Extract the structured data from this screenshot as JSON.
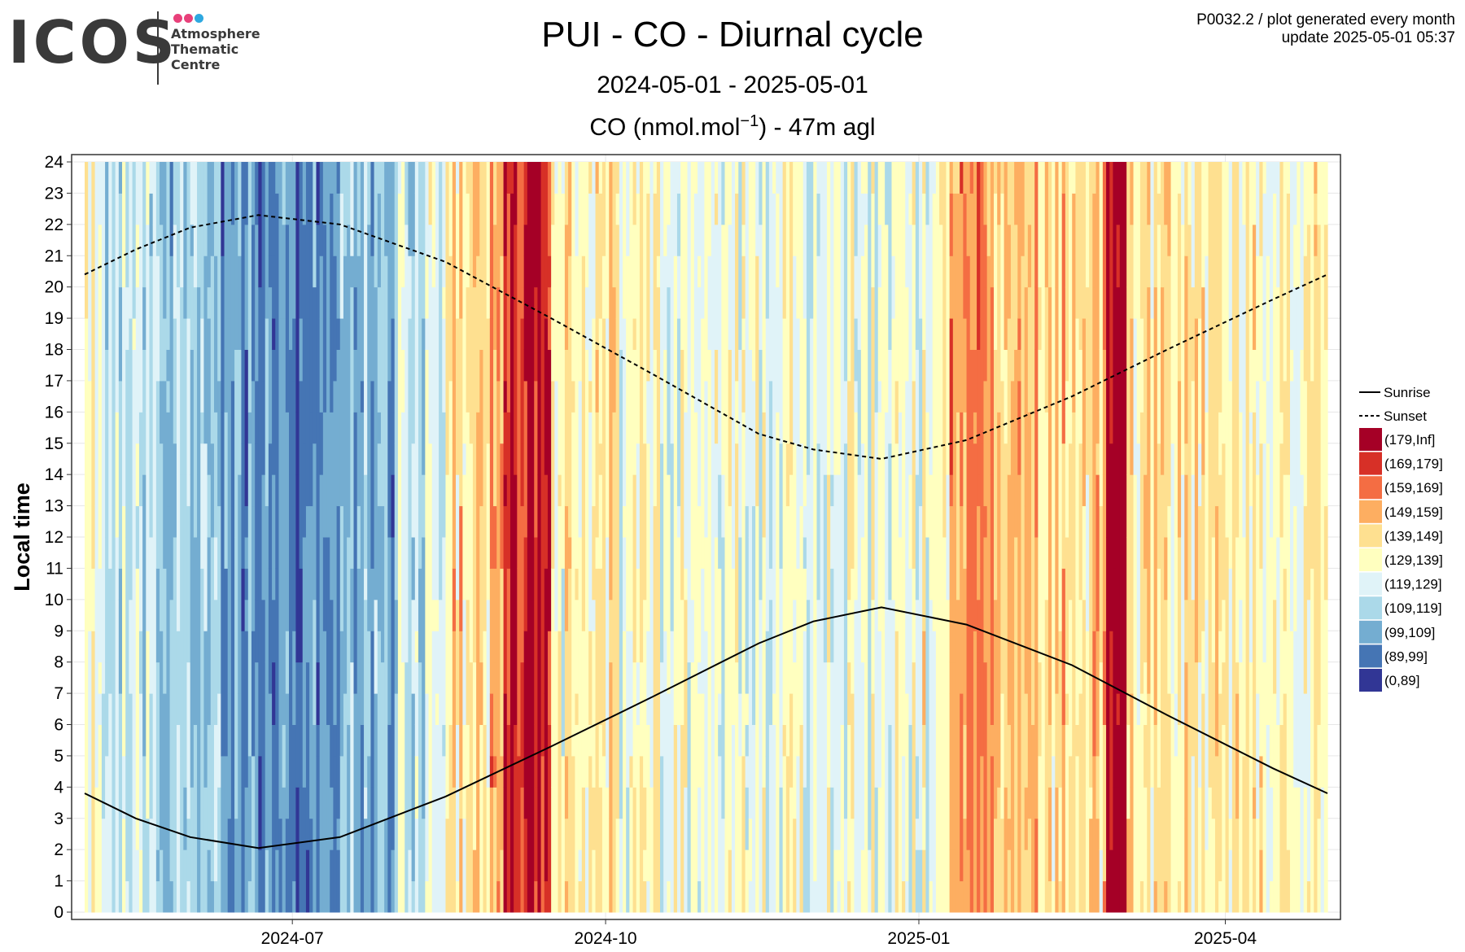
{
  "header": {
    "logo_word": "ICOS",
    "logo_lines": [
      "Atmosphere",
      "Thematic",
      "Centre"
    ],
    "logo_dot_colors": [
      "#e8407a",
      "#e8407a",
      "#2ea8e0"
    ],
    "title": "PUI - CO - Diurnal cycle",
    "date_range": "2024-05-01 - 2025-05-01",
    "unit_prefix": "CO (nmol.mol",
    "unit_exp": "−1",
    "unit_suffix": ") - 47m agl",
    "meta_line1": "P0032.2 / plot generated every month",
    "meta_line2": "update  2025-05-01 05:37"
  },
  "chart_data": {
    "type": "heatmap",
    "title": "PUI - CO - Diurnal cycle",
    "subtitle": "2024-05-01 - 2025-05-01",
    "ylabel": "Local time",
    "xlabel": "",
    "x_range": [
      "2024-05-01",
      "2025-05-01"
    ],
    "xticks": [
      "2024-07",
      "2024-10",
      "2025-01",
      "2025-04"
    ],
    "ylim": [
      0,
      24
    ],
    "yticks": [
      0,
      1,
      2,
      3,
      4,
      5,
      6,
      7,
      8,
      9,
      10,
      11,
      12,
      13,
      14,
      15,
      16,
      17,
      18,
      19,
      20,
      21,
      22,
      23,
      24
    ],
    "grid": true,
    "legend_position": "right",
    "bins": [
      {
        "label": "(179,Inf]",
        "color": "#a50026"
      },
      {
        "label": "(169,179]",
        "color": "#d73027"
      },
      {
        "label": "(159,169]",
        "color": "#f46d43"
      },
      {
        "label": "(149,159]",
        "color": "#fdae61"
      },
      {
        "label": "(139,149]",
        "color": "#fee090"
      },
      {
        "label": "(129,139]",
        "color": "#ffffbf"
      },
      {
        "label": "(119,129]",
        "color": "#e0f3f8"
      },
      {
        "label": "(109,119]",
        "color": "#abd9e9"
      },
      {
        "label": "(99,109]",
        "color": "#74add1"
      },
      {
        "label": "(89,99]",
        "color": "#4575b4"
      },
      {
        "label": "(0,89]",
        "color": "#313695"
      }
    ],
    "daily_co_level_nmol_mol": [
      {
        "from": "2024-05-01",
        "to": "2024-05-06",
        "mean": 132
      },
      {
        "from": "2024-05-06",
        "to": "2024-05-20",
        "mean": 120
      },
      {
        "from": "2024-05-20",
        "to": "2024-06-05",
        "mean": 113
      },
      {
        "from": "2024-06-05",
        "to": "2024-06-25",
        "mean": 103
      },
      {
        "from": "2024-06-25",
        "to": "2024-07-15",
        "mean": 96
      },
      {
        "from": "2024-07-15",
        "to": "2024-08-01",
        "mean": 106
      },
      {
        "from": "2024-08-01",
        "to": "2024-08-15",
        "mean": 121
      },
      {
        "from": "2024-08-15",
        "to": "2024-08-28",
        "mean": 143
      },
      {
        "from": "2024-08-28",
        "to": "2024-09-01",
        "mean": 158
      },
      {
        "from": "2024-09-01",
        "to": "2024-09-15",
        "mean": 175
      },
      {
        "from": "2024-09-15",
        "to": "2024-10-05",
        "mean": 137
      },
      {
        "from": "2024-10-05",
        "to": "2024-11-15",
        "mean": 131
      },
      {
        "from": "2024-11-15",
        "to": "2024-12-25",
        "mean": 128
      },
      {
        "from": "2024-12-25",
        "to": "2025-01-10",
        "mean": 132
      },
      {
        "from": "2025-01-10",
        "to": "2025-02-05",
        "mean": 152
      },
      {
        "from": "2025-02-05",
        "to": "2025-02-25",
        "mean": 146
      },
      {
        "from": "2025-02-25",
        "to": "2025-03-03",
        "mean": 190
      },
      {
        "from": "2025-03-03",
        "to": "2025-04-01",
        "mean": 140
      },
      {
        "from": "2025-04-01",
        "to": "2025-05-01",
        "mean": 135
      }
    ],
    "series": [
      {
        "name": "Sunrise",
        "style": "solid",
        "x": [
          "2024-05-01",
          "2024-05-16",
          "2024-06-01",
          "2024-06-21",
          "2024-07-15",
          "2024-08-15",
          "2024-09-15",
          "2024-10-15",
          "2024-11-15",
          "2024-12-01",
          "2024-12-21",
          "2025-01-15",
          "2025-02-15",
          "2025-03-15",
          "2025-04-15",
          "2025-05-01"
        ],
        "y": [
          3.8,
          3.0,
          2.4,
          2.05,
          2.4,
          3.7,
          5.3,
          6.9,
          8.6,
          9.3,
          9.75,
          9.2,
          7.9,
          6.3,
          4.6,
          3.8
        ]
      },
      {
        "name": "Sunset",
        "style": "dotted",
        "x": [
          "2024-05-01",
          "2024-05-16",
          "2024-06-01",
          "2024-06-21",
          "2024-07-15",
          "2024-08-15",
          "2024-09-15",
          "2024-10-15",
          "2024-11-15",
          "2024-12-01",
          "2024-12-21",
          "2025-01-15",
          "2025-02-15",
          "2025-03-15",
          "2025-04-15",
          "2025-05-01"
        ],
        "y": [
          20.4,
          21.2,
          21.9,
          22.3,
          22.0,
          20.8,
          19.0,
          17.2,
          15.3,
          14.8,
          14.5,
          15.1,
          16.5,
          18.0,
          19.6,
          20.4
        ]
      }
    ]
  }
}
